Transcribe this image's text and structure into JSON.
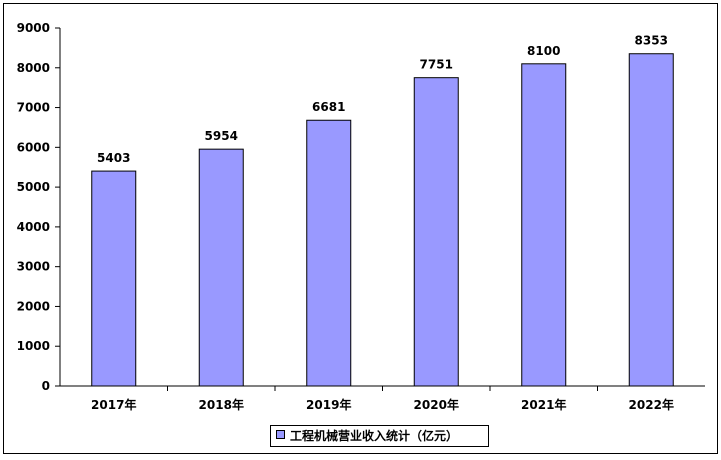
{
  "chart_data": {
    "type": "bar",
    "categories": [
      "2017年",
      "2018年",
      "2019年",
      "2020年",
      "2021年",
      "2022年"
    ],
    "series": [
      {
        "name": "工程机械营业收入统计（亿元）",
        "values": [
          5403,
          5954,
          6681,
          7751,
          8100,
          8353
        ],
        "color": "#9999ff"
      }
    ],
    "ylim": [
      0,
      9000
    ],
    "yticks": [
      0,
      1000,
      2000,
      3000,
      4000,
      5000,
      6000,
      7000,
      8000,
      9000
    ],
    "xlabel": "",
    "ylabel": "",
    "legend_position": "bottom",
    "grid": false,
    "data_labels": [
      "5403",
      "5954",
      "6681",
      "7751",
      "8100",
      "8353"
    ]
  }
}
